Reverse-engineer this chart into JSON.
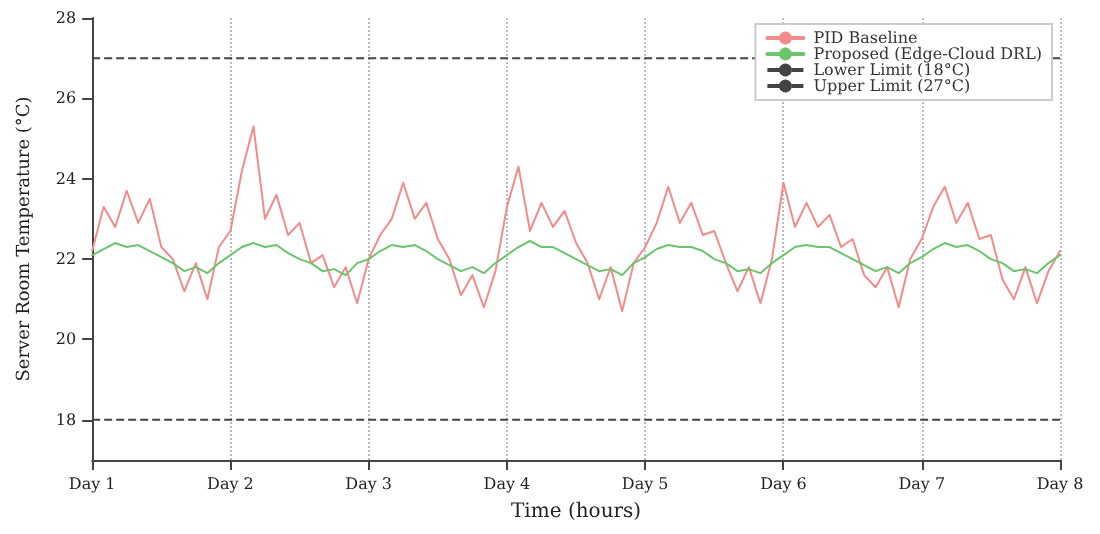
{
  "chart_data": {
    "type": "line",
    "xlabel": "Time (hours)",
    "ylabel": "Server Room Temperature (°C)",
    "categories": [
      "Day 1",
      null,
      null,
      null,
      null,
      null,
      null,
      null,
      null,
      null,
      null,
      null,
      "Day 2",
      null,
      null,
      null,
      null,
      null,
      null,
      null,
      null,
      null,
      null,
      null,
      "Day 3",
      null,
      null,
      null,
      null,
      null,
      null,
      null,
      null,
      null,
      null,
      null,
      "Day 4",
      null,
      null,
      null,
      null,
      null,
      null,
      null,
      null,
      null,
      null,
      null,
      "Day 5",
      null,
      null,
      null,
      null,
      null,
      null,
      null,
      null,
      null,
      null,
      null,
      "Day 6",
      null,
      null,
      null,
      null,
      null,
      null,
      null,
      null,
      null,
      null,
      null,
      "Day 7",
      null,
      null,
      null,
      null,
      null,
      null,
      null,
      null,
      null,
      null,
      null,
      "Day 8"
    ],
    "series": [
      {
        "name": "PID Baseline",
        "color": "#f28b8b",
        "values": [
          22.2,
          23.3,
          22.8,
          23.7,
          22.9,
          23.5,
          22.3,
          22.0,
          21.2,
          21.9,
          21.0,
          22.3,
          22.7,
          24.2,
          25.3,
          23.0,
          23.6,
          22.6,
          22.9,
          21.9,
          22.1,
          21.3,
          21.8,
          20.9,
          22.0,
          22.6,
          23.0,
          23.9,
          23.0,
          23.4,
          22.5,
          22.0,
          21.1,
          21.6,
          20.8,
          21.7,
          23.3,
          24.3,
          22.7,
          23.4,
          22.8,
          23.2,
          22.4,
          21.9,
          21.0,
          21.8,
          20.7,
          21.9,
          22.3,
          22.9,
          23.8,
          22.9,
          23.4,
          22.6,
          22.7,
          21.9,
          21.2,
          21.8,
          20.9,
          22.0,
          23.9,
          22.8,
          23.4,
          22.8,
          23.1,
          22.3,
          22.5,
          21.6,
          21.3,
          21.8,
          20.8,
          22.0,
          22.5,
          23.3,
          23.8,
          22.9,
          23.4,
          22.5,
          22.6,
          21.5,
          21.0,
          21.8,
          20.9,
          21.7,
          22.2
        ]
      },
      {
        "name": "Proposed (Edge-Cloud DRL)",
        "color": "#6cc46c",
        "values": [
          22.1,
          22.25,
          22.4,
          22.3,
          22.35,
          22.2,
          22.05,
          21.9,
          21.7,
          21.8,
          21.65,
          21.9,
          22.1,
          22.3,
          22.4,
          22.3,
          22.35,
          22.15,
          22.0,
          21.9,
          21.7,
          21.75,
          21.6,
          21.9,
          22.0,
          22.2,
          22.35,
          22.3,
          22.35,
          22.2,
          22.0,
          21.85,
          21.7,
          21.8,
          21.65,
          21.9,
          22.1,
          22.3,
          22.45,
          22.3,
          22.3,
          22.15,
          22.0,
          21.85,
          21.7,
          21.75,
          21.6,
          21.9,
          22.05,
          22.25,
          22.35,
          22.3,
          22.3,
          22.2,
          22.0,
          21.9,
          21.7,
          21.75,
          21.65,
          21.9,
          22.1,
          22.3,
          22.35,
          22.3,
          22.3,
          22.15,
          22.0,
          21.85,
          21.7,
          21.8,
          21.65,
          21.9,
          22.05,
          22.25,
          22.4,
          22.3,
          22.35,
          22.2,
          22.0,
          21.9,
          21.7,
          21.75,
          21.65,
          21.9,
          22.1
        ]
      }
    ],
    "ref_lines": [
      {
        "axis": "y",
        "value": 18,
        "label": "Lower Limit (18°C)",
        "color": "#444444",
        "line_style": "dashed"
      },
      {
        "axis": "y",
        "value": 27,
        "label": "Upper Limit (27°C)",
        "color": "#444444",
        "line_style": "dashed"
      }
    ],
    "ylim": [
      17,
      28
    ],
    "yticks": [
      18,
      20,
      22,
      24,
      26,
      28
    ],
    "grid": "x",
    "legend": "top right",
    "marker": "none",
    "line_style": "solid"
  }
}
